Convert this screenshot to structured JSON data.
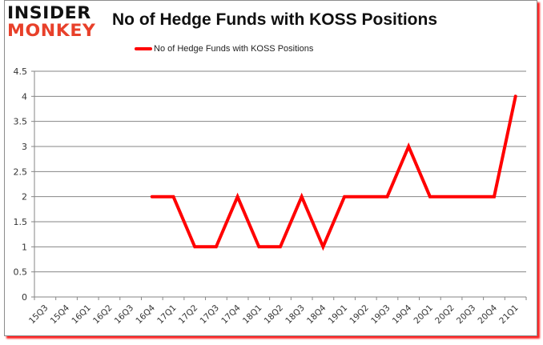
{
  "logo": {
    "line1": "INSIDER",
    "line2": "MONKEY"
  },
  "chart_data": {
    "type": "line",
    "title": "No of Hedge Funds with KOSS Positions",
    "xlabel": "",
    "ylabel": "",
    "ylim": [
      0,
      4.5
    ],
    "yticks": [
      "0",
      "0.5",
      "1",
      "1.5",
      "2",
      "2.5",
      "3",
      "3.5",
      "4",
      "4.5"
    ],
    "grid": true,
    "legend_position": "top",
    "categories": [
      "15Q3",
      "15Q4",
      "16Q1",
      "16Q2",
      "16Q3",
      "16Q4",
      "17Q1",
      "17Q2",
      "17Q3",
      "17Q4",
      "18Q1",
      "18Q2",
      "18Q3",
      "18Q4",
      "19Q1",
      "19Q2",
      "19Q3",
      "19Q4",
      "20Q1",
      "20Q2",
      "20Q3",
      "20Q4",
      "21Q1"
    ],
    "series": [
      {
        "name": "No of Hedge Funds with KOSS Positions",
        "color": "#ff0000",
        "values": [
          null,
          null,
          null,
          null,
          null,
          2,
          2,
          1,
          1,
          2,
          1,
          1,
          2,
          1,
          2,
          2,
          2,
          3,
          2,
          2,
          2,
          2,
          4
        ]
      }
    ]
  }
}
